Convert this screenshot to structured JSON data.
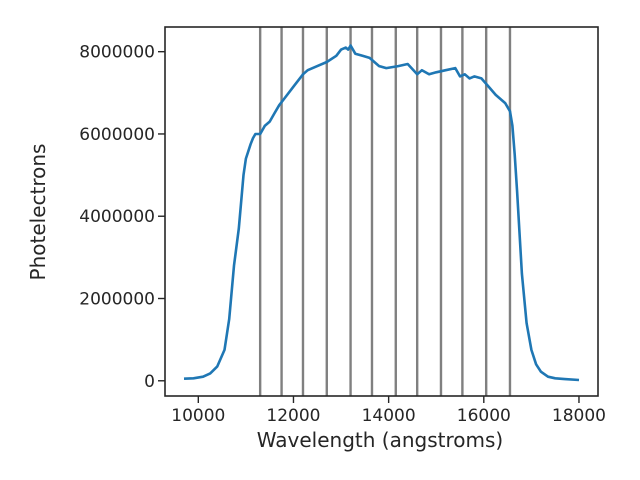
{
  "chart_data": {
    "type": "line",
    "title": "",
    "xlabel": "Wavelength (angstroms)",
    "ylabel": "Photelectrons",
    "xlim": [
      9300,
      18400
    ],
    "ylim": [
      -370000,
      8600000
    ],
    "xticks": [
      10000,
      12000,
      14000,
      16000,
      18000
    ],
    "xtick_labels": [
      "10000",
      "12000",
      "14000",
      "16000",
      "18000"
    ],
    "yticks": [
      0,
      2000000,
      4000000,
      6000000,
      8000000
    ],
    "ytick_labels": [
      "0",
      "2000000",
      "4000000",
      "6000000",
      "8000000"
    ],
    "grid": false,
    "series": [
      {
        "color": "#1f77b4",
        "x": [
          9700,
          9900,
          10100,
          10250,
          10400,
          10550,
          10650,
          10750,
          10850,
          10950,
          11000,
          11100,
          11150,
          11200,
          11300,
          11400,
          11500,
          11600,
          11700,
          11800,
          12000,
          12200,
          12300,
          12500,
          12700,
          12900,
          13000,
          13100,
          13150,
          13200,
          13300,
          13450,
          13600,
          13800,
          13950,
          14200,
          14400,
          14600,
          14700,
          14850,
          15000,
          15200,
          15400,
          15500,
          15600,
          15700,
          15800,
          15950,
          16100,
          16250,
          16450,
          16550,
          16600,
          16650,
          16700,
          16750,
          16800,
          16900,
          17000,
          17100,
          17200,
          17350,
          17500,
          17700,
          18000
        ],
        "y": [
          50000,
          60000,
          100000,
          180000,
          350000,
          750000,
          1500000,
          2800000,
          3700000,
          5000000,
          5400000,
          5750000,
          5900000,
          6000000,
          6000000,
          6200000,
          6300000,
          6500000,
          6700000,
          6850000,
          7150000,
          7450000,
          7550000,
          7650000,
          7750000,
          7900000,
          8050000,
          8100000,
          8050000,
          8150000,
          7950000,
          7900000,
          7850000,
          7650000,
          7600000,
          7650000,
          7700000,
          7450000,
          7550000,
          7450000,
          7500000,
          7550000,
          7600000,
          7400000,
          7450000,
          7350000,
          7400000,
          7350000,
          7150000,
          6950000,
          6750000,
          6550000,
          6200000,
          5500000,
          4600000,
          3600000,
          2600000,
          1400000,
          750000,
          400000,
          220000,
          100000,
          60000,
          40000,
          20000
        ]
      }
    ],
    "vlines": {
      "color": "#808080",
      "x": [
        11300,
        11750,
        12200,
        12700,
        13200,
        13650,
        14150,
        14600,
        15100,
        15550,
        16050,
        16550
      ]
    }
  }
}
